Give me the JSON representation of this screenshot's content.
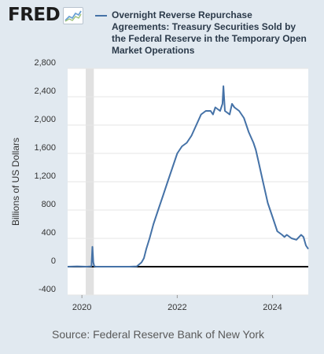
{
  "header": {
    "logo_text": "FRED",
    "logo_icon": "line-chart-icon"
  },
  "legend": {
    "series_name": "Overnight Reverse Repurchase Agreements: Treasury Securities Sold by the Federal Reserve in the Temporary Open Market Operations",
    "color": "#4572a7"
  },
  "source": "Source: Federal Reserve Bank of New York",
  "colors": {
    "background": "#e1e9f0",
    "plot_background": "#ffffff",
    "line": "#4572a7",
    "recession_band": "#e1e1e1",
    "zero_line": "#000000"
  },
  "chart_data": {
    "type": "line",
    "ylabel": "Billions of US Dollars",
    "ylim": [
      -400,
      2800
    ],
    "yticks": [
      "2,800",
      "2,400",
      "2,000",
      "1,600",
      "1,200",
      "800",
      "400",
      "0",
      "-400"
    ],
    "xlim": [
      2019.7,
      2024.75
    ],
    "xticks": [
      "2020",
      "2022",
      "2024"
    ],
    "grid": true,
    "legend_position": "top",
    "recession_shading": [
      [
        2020.08,
        2020.25
      ]
    ],
    "series": [
      {
        "name": "Overnight Reverse Repurchase Agreements: Treasury Securities Sold by the Federal Reserve in the Temporary Open Market Operations",
        "x": [
          2019.7,
          2019.9,
          2020.1,
          2020.2,
          2020.22,
          2020.24,
          2020.26,
          2020.3,
          2020.5,
          2020.8,
          2021.0,
          2021.15,
          2021.25,
          2021.3,
          2021.35,
          2021.42,
          2021.5,
          2021.6,
          2021.7,
          2021.8,
          2021.9,
          2022.0,
          2022.1,
          2022.2,
          2022.3,
          2022.4,
          2022.5,
          2022.6,
          2022.7,
          2022.75,
          2022.8,
          2022.9,
          2022.95,
          2022.97,
          2023.0,
          2023.1,
          2023.15,
          2023.2,
          2023.3,
          2023.4,
          2023.5,
          2023.6,
          2023.65,
          2023.7,
          2023.8,
          2023.9,
          2024.0,
          2024.1,
          2024.2,
          2024.25,
          2024.3,
          2024.4,
          2024.5,
          2024.6,
          2024.65,
          2024.7,
          2024.75
        ],
        "y": [
          0,
          5,
          0,
          5,
          280,
          60,
          5,
          0,
          0,
          0,
          0,
          5,
          60,
          120,
          250,
          400,
          600,
          800,
          1000,
          1200,
          1400,
          1600,
          1700,
          1750,
          1850,
          2000,
          2150,
          2200,
          2200,
          2150,
          2250,
          2200,
          2300,
          2550,
          2200,
          2150,
          2300,
          2250,
          2200,
          2100,
          1900,
          1750,
          1650,
          1500,
          1200,
          900,
          700,
          500,
          450,
          420,
          450,
          400,
          380,
          450,
          420,
          300,
          250
        ]
      }
    ]
  }
}
